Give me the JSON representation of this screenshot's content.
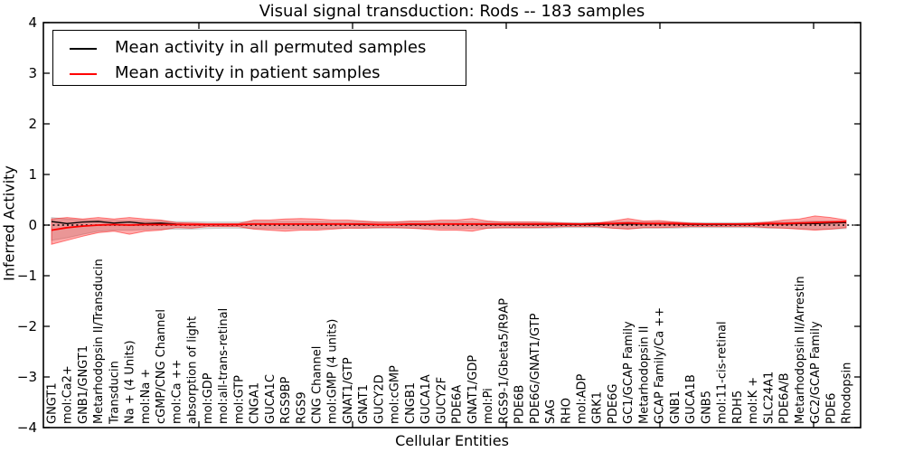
{
  "title": "Visual signal transduction: Rods -- 183 samples",
  "xlabel": "Cellular Entities",
  "ylabel": "Inferred Activity",
  "legend": {
    "entries": [
      {
        "label": "Mean activity in all permuted samples",
        "color": "#000000"
      },
      {
        "label": "Mean activity in patient samples",
        "color": "#ff0000"
      }
    ]
  },
  "colors": {
    "patient_line": "#ff0000",
    "permuted_line": "#000000",
    "patient_band": "#ff0000",
    "permuted_band": "#999999",
    "zero_line": "#000000"
  },
  "chart_data": {
    "type": "line",
    "title": "Visual signal transduction: Rods -- 183 samples",
    "xlabel": "Cellular Entities",
    "ylabel": "Inferred Activity",
    "ylim": [
      -4,
      4
    ],
    "ytick_labels": [
      "4",
      "3",
      "2",
      "1",
      "0",
      "−1",
      "−2",
      "−3",
      "−4"
    ],
    "ytick_values": [
      4,
      3,
      2,
      1,
      0,
      -1,
      -2,
      -3,
      -4
    ],
    "grid": false,
    "legend_position": "upper left",
    "categories": [
      "GNGT1",
      "mol:Ca2+",
      "GNB1/GNGT1",
      "Metarhodopsin II/Transducin",
      "Transducin",
      "Na + (4 Units)",
      "mol:Na +",
      "cGMP/CNG Channel",
      "mol:Ca ++",
      "absorption of light",
      "mol:GDP",
      "mol:all-trans-retinal",
      "mol:GTP",
      "CNGA1",
      "GUCA1C",
      "RGS9BP",
      "RGS9",
      "CNG Channel",
      "mol:GMP (4 units)",
      "GNAT1/GTP",
      "GNAT1",
      "GUCY2D",
      "mol:cGMP",
      "CNGB1",
      "GUCA1A",
      "GUCY2F",
      "PDE6A",
      "GNAT1/GDP",
      "mol:Pi",
      "RGS9-1/Gbeta5/R9AP",
      "PDE6B",
      "PDE6G/GNAT1/GTP",
      "SAG",
      "RHO",
      "mol:ADP",
      "GRK1",
      "PDE6G",
      "GC1/GCAP Family",
      "Metarhodopsin II",
      "GCAP Family/Ca ++",
      "GNB1",
      "GUCA1B",
      "GNB5",
      "mol:11-cis-retinal",
      "RDH5",
      "mol:K +",
      "SLC24A1",
      "PDE6A/B",
      "Metarhodopsin II/Arrestin",
      "GC2/GCAP Family",
      "PDE6",
      "Rhodopsin"
    ],
    "series": [
      {
        "name": "Mean activity in all permuted samples",
        "color": "#000000",
        "values": [
          0.07,
          0.03,
          0.06,
          0.07,
          0.04,
          0.06,
          0.03,
          0.04,
          0.02,
          0.01,
          0.01,
          0.01,
          0.01,
          0.02,
          0.02,
          0.02,
          0.02,
          0.02,
          0.02,
          0.02,
          0.01,
          0.01,
          0.01,
          0.01,
          0.01,
          0.02,
          0.02,
          0.02,
          0.01,
          0.01,
          0.01,
          0.01,
          0.01,
          0.01,
          0.01,
          0.01,
          0.02,
          0.02,
          0.02,
          0.02,
          0.02,
          0.01,
          0.01,
          0.01,
          0.01,
          0.01,
          0.02,
          0.02,
          0.03,
          0.03,
          0.04,
          0.05
        ]
      },
      {
        "name": "Mean activity in patient samples",
        "color": "#ff0000",
        "values": [
          -0.1,
          -0.05,
          -0.02,
          0.0,
          0.01,
          0.0,
          0.01,
          0.01,
          0.01,
          0.01,
          0.01,
          0.01,
          0.01,
          0.02,
          0.02,
          0.02,
          0.02,
          0.02,
          0.02,
          0.02,
          0.02,
          0.01,
          0.01,
          0.02,
          0.02,
          0.02,
          0.02,
          0.02,
          0.02,
          0.02,
          0.02,
          0.02,
          0.02,
          0.02,
          0.02,
          0.03,
          0.03,
          0.04,
          0.03,
          0.03,
          0.03,
          0.02,
          0.02,
          0.02,
          0.02,
          0.02,
          0.03,
          0.03,
          0.04,
          0.05,
          0.06,
          0.07
        ]
      }
    ],
    "bands": [
      {
        "name": "permuted-sample-range",
        "color": "#999999",
        "opacity": 0.3,
        "upper": [
          0.15,
          0.12,
          0.1,
          0.1,
          0.09,
          0.09,
          0.08,
          0.08,
          0.07,
          0.07,
          0.06,
          0.06,
          0.06,
          0.07,
          0.07,
          0.07,
          0.07,
          0.07,
          0.06,
          0.06,
          0.06,
          0.06,
          0.06,
          0.06,
          0.06,
          0.06,
          0.07,
          0.06,
          0.06,
          0.06,
          0.06,
          0.06,
          0.06,
          0.05,
          0.05,
          0.05,
          0.06,
          0.07,
          0.06,
          0.06,
          0.06,
          0.05,
          0.05,
          0.05,
          0.05,
          0.05,
          0.06,
          0.06,
          0.07,
          0.08,
          0.08,
          0.07
        ],
        "lower": [
          -0.3,
          -0.25,
          -0.18,
          -0.12,
          -0.1,
          -0.1,
          -0.09,
          -0.08,
          -0.08,
          -0.08,
          -0.07,
          -0.06,
          -0.06,
          -0.07,
          -0.07,
          -0.07,
          -0.07,
          -0.07,
          -0.06,
          -0.06,
          -0.06,
          -0.06,
          -0.06,
          -0.06,
          -0.06,
          -0.06,
          -0.07,
          -0.06,
          -0.06,
          -0.06,
          -0.06,
          -0.06,
          -0.06,
          -0.05,
          -0.05,
          -0.05,
          -0.06,
          -0.07,
          -0.06,
          -0.06,
          -0.06,
          -0.05,
          -0.05,
          -0.05,
          -0.05,
          -0.05,
          -0.06,
          -0.06,
          -0.07,
          -0.08,
          -0.08,
          -0.07
        ]
      },
      {
        "name": "patient-sample-range",
        "color": "#ff0000",
        "opacity": 0.33,
        "upper": [
          0.12,
          0.15,
          0.12,
          0.15,
          0.12,
          0.15,
          0.12,
          0.1,
          0.05,
          0.04,
          0.03,
          0.03,
          0.03,
          0.1,
          0.1,
          0.12,
          0.13,
          0.12,
          0.1,
          0.1,
          0.08,
          0.06,
          0.06,
          0.08,
          0.08,
          0.1,
          0.1,
          0.13,
          0.08,
          0.06,
          0.06,
          0.06,
          0.05,
          0.04,
          0.03,
          0.04,
          0.08,
          0.13,
          0.08,
          0.09,
          0.06,
          0.04,
          0.03,
          0.03,
          0.03,
          0.04,
          0.06,
          0.1,
          0.12,
          0.18,
          0.15,
          0.1
        ],
        "lower": [
          -0.38,
          -0.3,
          -0.22,
          -0.15,
          -0.12,
          -0.18,
          -0.12,
          -0.1,
          -0.05,
          -0.06,
          -0.03,
          -0.03,
          -0.03,
          -0.08,
          -0.1,
          -0.12,
          -0.1,
          -0.1,
          -0.08,
          -0.06,
          -0.06,
          -0.05,
          -0.05,
          -0.06,
          -0.08,
          -0.1,
          -0.1,
          -0.12,
          -0.06,
          -0.05,
          -0.05,
          -0.05,
          -0.04,
          -0.03,
          -0.03,
          -0.03,
          -0.06,
          -0.08,
          -0.05,
          -0.05,
          -0.04,
          -0.03,
          -0.03,
          -0.03,
          -0.03,
          -0.03,
          -0.05,
          -0.06,
          -0.08,
          -0.1,
          -0.08,
          -0.05
        ]
      }
    ],
    "zero_line": {
      "style": "dotted",
      "color": "#000000",
      "y": 0
    }
  }
}
